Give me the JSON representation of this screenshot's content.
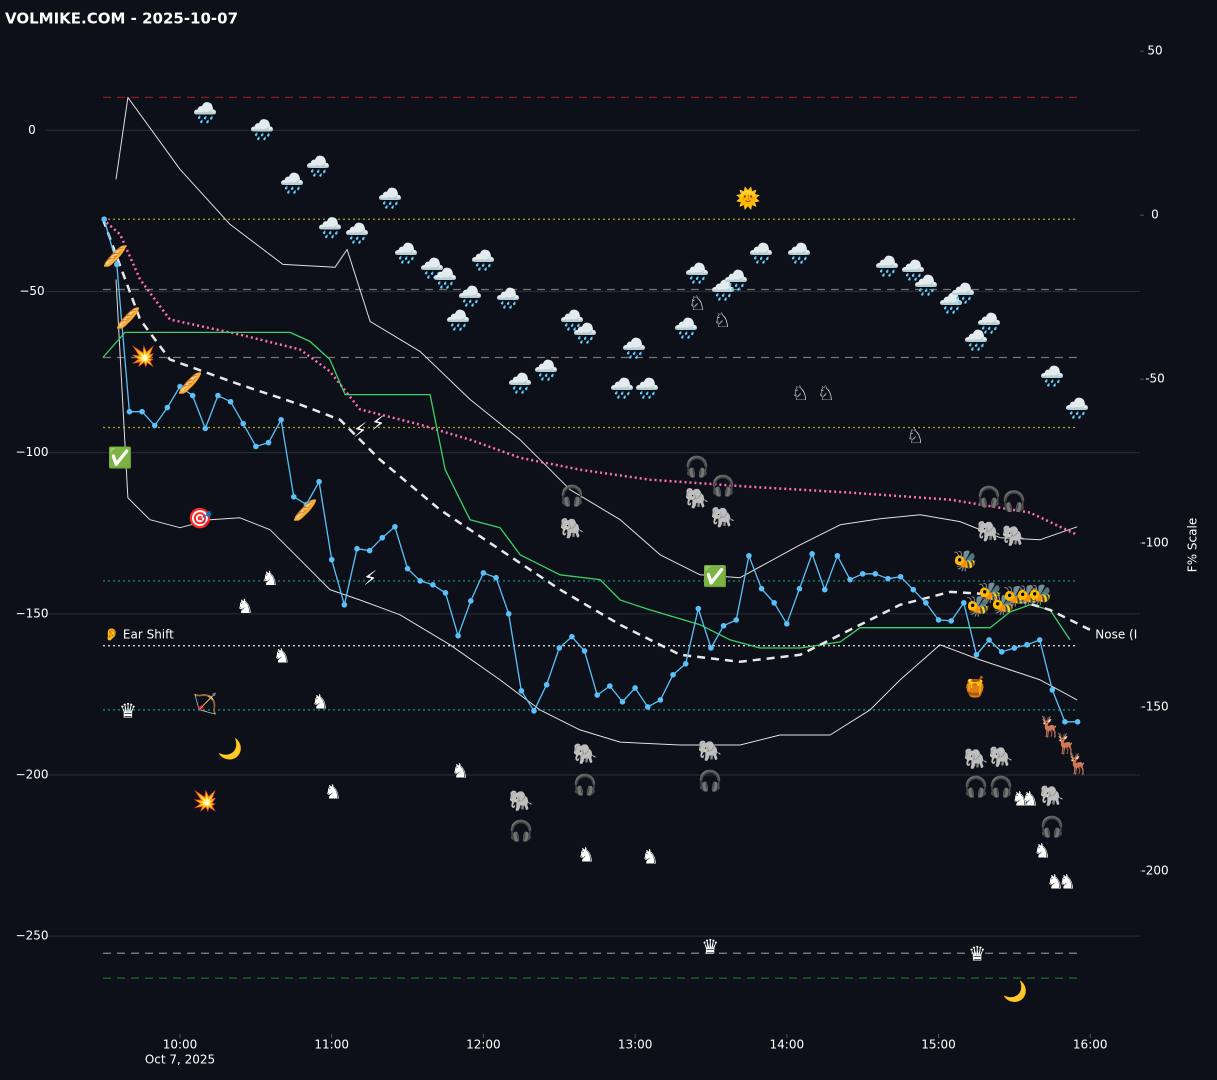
{
  "chart_data": {
    "type": "line",
    "title": "VOLMIKE.COM  - 2025-10-07",
    "y2_label": "F% Scale",
    "x_sublabel": "Oct 7, 2025",
    "annotations": [
      {
        "text": "👂 Ear Shift",
        "x": 570,
        "y": -156.5,
        "color": "#222222"
      },
      {
        "text": "Nose (I",
        "x": 962,
        "y": -156.5,
        "color": "#ffffff"
      }
    ],
    "xlim": [
      540,
      980
    ],
    "xticks": [
      {
        "value": 600,
        "label": "10:00"
      },
      {
        "value": 660,
        "label": "11:00"
      },
      {
        "value": 720,
        "label": "12:00"
      },
      {
        "value": 780,
        "label": "13:00"
      },
      {
        "value": 840,
        "label": "14:00"
      },
      {
        "value": 900,
        "label": "15:00"
      },
      {
        "value": 960,
        "label": "16:00"
      }
    ],
    "ylim": [
      -276,
      28
    ],
    "yticks": [
      0,
      {
        "value": -50,
        "label": "−50"
      },
      {
        "value": -100,
        "label": "−100"
      },
      {
        "value": -150,
        "label": "−150"
      },
      {
        "value": -200,
        "label": "−200"
      },
      {
        "value": -250,
        "label": "−250"
      }
    ],
    "y2lim": [
      -245.4,
      53.4
    ],
    "y2ticks": [
      50,
      0,
      -50,
      -100,
      -150,
      -200
    ],
    "grid": true,
    "hlines": [
      {
        "value": 10.2,
        "color": "#8b1a1a",
        "style": "dashed"
      },
      {
        "value": -27.6,
        "color": "#b8a020",
        "style": "dotted"
      },
      {
        "value": -49.4,
        "color": "#777777",
        "style": "dashed"
      },
      {
        "value": -70.5,
        "color": "#777777",
        "style": "dashed"
      },
      {
        "value": -92.2,
        "color": "#b8a020",
        "style": "dotted"
      },
      {
        "value": -139.8,
        "color": "#1f9c8c",
        "style": "dotted"
      },
      {
        "value": -159.9,
        "color": "#e8e8e8",
        "style": "dotted"
      },
      {
        "value": -179.8,
        "color": "#1f9c8c",
        "style": "dotted"
      },
      {
        "value": -255.3,
        "color": "#888888",
        "style": "dashed"
      },
      {
        "value": -263,
        "color": "#1b6e2a",
        "style": "dashed"
      }
    ],
    "series": [
      {
        "color": "#e0e0e0",
        "width": 1,
        "style": "solid",
        "x": [
          574.7,
          579.4,
          600,
          619.8,
          640.7,
          661.3,
          666.1,
          675.2,
          694.9,
          714.7,
          734.5,
          754.3,
          774.1,
          789.9,
          805.7,
          821.5,
          845.3,
          861.1,
          876.9,
          892.7,
          908.5,
          924.4,
          940.2,
          954.8
        ],
        "values": [
          -15.2,
          10.2,
          -12.1,
          -29.2,
          -41.6,
          -42.5,
          -37,
          -59.3,
          -68.6,
          -83.5,
          -96,
          -111.5,
          -120.8,
          -131.7,
          -137.9,
          -138.8,
          -128.6,
          -122.4,
          -120.5,
          -119.3,
          -121.4,
          -126.4,
          -127,
          -123
        ]
      },
      {
        "color": "#e0e0e0",
        "width": 1,
        "style": "solid",
        "x": [
          574.7,
          579.4,
          588.1,
          600,
          611.9,
          623.7,
          635.6,
          647.5,
          659.3,
          671.2,
          687,
          706.8,
          726.6,
          742.4,
          758.2,
          774.1,
          797.8,
          821.5,
          837.3,
          857.1,
          872.9,
          884.8,
          900.6,
          916.5,
          940.2,
          954.8
        ],
        "values": [
          -46.3,
          -114,
          -120.8,
          -123.3,
          -120.8,
          -120.2,
          -123.9,
          -133.2,
          -142.5,
          -145.7,
          -150.3,
          -159.6,
          -170.5,
          -179.8,
          -186,
          -189.8,
          -190.7,
          -190.7,
          -187.6,
          -187.6,
          -179.8,
          -170.5,
          -159.6,
          -164.3,
          -170.5,
          -176.7
        ]
      },
      {
        "color": "#ff6eb4",
        "width": 2.5,
        "style": "dotted",
        "x": [
          569.5,
          576.3,
          584.2,
          596,
          623.7,
          647.5,
          659.3,
          671.2,
          694.9,
          714.7,
          734.5,
          758.2,
          785.9,
          825.5,
          865.1,
          904.6,
          936.2,
          954.8
        ],
        "values": [
          -27.6,
          -32.3,
          -46.3,
          -58.7,
          -63.4,
          -68,
          -74.8,
          -86.6,
          -91.3,
          -96,
          -101.6,
          -105.3,
          -108.4,
          -110.6,
          -112.4,
          -114.6,
          -118.6,
          -125.5
        ]
      },
      {
        "color": "#3ecf6a",
        "width": 1.3,
        "style": "solid",
        "x": [
          569.5,
          578.2,
          643.5,
          651.4,
          659.3,
          665.3,
          698.9,
          704.9,
          714.7,
          726.6,
          734.5,
          750.3,
          766.1,
          774.1,
          785.9,
          805.7,
          817.6,
          829.4,
          845.3,
          861.1,
          869,
          920.4,
          928.3,
          936.2,
          944.1,
          952
        ],
        "values": [
          -70.5,
          -62.7,
          -62.7,
          -65.5,
          -71.1,
          -82,
          -82,
          -105.3,
          -120.8,
          -123.3,
          -131.7,
          -137.9,
          -139.4,
          -145.7,
          -148.8,
          -153.4,
          -158.1,
          -160.6,
          -160.6,
          -158.7,
          -154.3,
          -154.3,
          -149.4,
          -147.2,
          -148.8,
          -158.1
        ]
      },
      {
        "color": "#e8e8e8",
        "width": 2.5,
        "style": "dashed",
        "x": [
          569.5,
          584.2,
          596,
          623.7,
          647.5,
          663.3,
          679.1,
          702.8,
          726.6,
          750.3,
          774.1,
          797.8,
          821.5,
          845.3,
          869,
          884.8,
          904.6,
          924.4,
          944.1,
          960
        ],
        "values": [
          -27.6,
          -58.7,
          -71.1,
          -78.9,
          -85.1,
          -89.8,
          -102.2,
          -117.7,
          -130.1,
          -142.5,
          -153.4,
          -162.7,
          -164.9,
          -162.7,
          -153.4,
          -147.2,
          -143.2,
          -144.1,
          -148.8,
          -155
        ]
      },
      {
        "color": "#5bc0f8",
        "width": 1.3,
        "style": "solid",
        "markers": true,
        "x": [
          570,
          575,
          580,
          585,
          590,
          595,
          600,
          605,
          610,
          615,
          620,
          625,
          630,
          635,
          640,
          645,
          650,
          655,
          660,
          665,
          670,
          675,
          680,
          685,
          690,
          695,
          700,
          705,
          710,
          715,
          720,
          725,
          730,
          735,
          740,
          745,
          750,
          755,
          760,
          765,
          770,
          775,
          780,
          785,
          790,
          795,
          800,
          805,
          810,
          815,
          820,
          825,
          830,
          835,
          840,
          845,
          850,
          855,
          860,
          865,
          870,
          875,
          880,
          885,
          890,
          895,
          900,
          905,
          910,
          915,
          920,
          925,
          930,
          935,
          940,
          945,
          950,
          955
        ],
        "values": [
          -27.6,
          -41.6,
          -87.3,
          -87.3,
          -91.6,
          -86,
          -79.5,
          -82.3,
          -92.5,
          -82.3,
          -84.2,
          -91,
          -98.1,
          -96.9,
          -89.8,
          -113.7,
          -116.1,
          -109,
          -133.2,
          -147.2,
          -129.8,
          -130.4,
          -126.4,
          -123,
          -136,
          -139.8,
          -141,
          -143.5,
          -156.8,
          -146,
          -137.3,
          -138.8,
          -150,
          -173.9,
          -180.1,
          -172,
          -160.6,
          -157.1,
          -161.5,
          -175.2,
          -172.4,
          -177.3,
          -173,
          -178.9,
          -176.7,
          -168.9,
          -165.5,
          -148.4,
          -160.6,
          -153.7,
          -151.9,
          -132,
          -142.2,
          -146.6,
          -153.1,
          -142.2,
          -131.4,
          -142.5,
          -132,
          -139.4,
          -137.6,
          -137.6,
          -139.1,
          -138.5,
          -142.5,
          -146.6,
          -151.9,
          -152.2,
          -146.6,
          -162.7,
          -158.1,
          -161.8,
          -160.6,
          -159.6,
          -158.1,
          -173.6,
          -183.5,
          -183.5
        ]
      }
    ],
    "markers": [
      {
        "symbol": "🌧️",
        "color": "#ffffff",
        "points": [
          [
            609.9,
            5
          ],
          [
            632.4,
            -0.3
          ],
          [
            644.3,
            -16.8
          ],
          [
            654.6,
            -11.5
          ],
          [
            659.3,
            -30.7
          ],
          [
            670,
            -32.3
          ],
          [
            683.1,
            -21.4
          ],
          [
            689.4,
            -38.5
          ],
          [
            699.7,
            -43.2
          ],
          [
            704.8,
            -46.3
          ],
          [
            710,
            -59.3
          ],
          [
            714.7,
            -51.9
          ],
          [
            719.9,
            -40.7
          ],
          [
            729.7,
            -52.5
          ],
          [
            734.5,
            -78.9
          ],
          [
            744.8,
            -74.8
          ],
          [
            755.1,
            -59.3
          ],
          [
            760.2,
            -63.4
          ],
          [
            774.8,
            -80.4
          ],
          [
            784.7,
            -80.4
          ],
          [
            779.6,
            -68
          ],
          [
            800.2,
            -61.8
          ],
          [
            804.5,
            -44.7
          ],
          [
            814.8,
            -50
          ],
          [
            819.9,
            -46.9
          ],
          [
            829.8,
            -38.5
          ],
          [
            844.9,
            -38.5
          ],
          [
            879.7,
            -42.5
          ],
          [
            890,
            -43.8
          ],
          [
            895.1,
            -48.4
          ],
          [
            905,
            -54
          ],
          [
            909.7,
            -50.9
          ],
          [
            914.9,
            -65.5
          ],
          [
            920,
            -60.2
          ],
          [
            944.9,
            -76.7
          ],
          [
            954.8,
            -86.6
          ]
        ]
      },
      {
        "symbol": "♞",
        "color": "#ff1a1a",
        "points": [
          [
            625.7,
            -148.1
          ],
          [
            635.6,
            -139.4
          ],
          [
            640.3,
            -163.4
          ],
          [
            655.4,
            -177.6
          ],
          [
            660.5,
            -205.6
          ],
          [
            710.8,
            -199.1
          ],
          [
            760.6,
            -225.2
          ],
          [
            785.9,
            -225.8
          ],
          [
            932.3,
            -207.8
          ],
          [
            936.2,
            -207.8
          ],
          [
            941,
            -223.9
          ],
          [
            946.1,
            -233.5
          ],
          [
            950.9,
            -233.5
          ]
        ]
      },
      {
        "symbol": "♛",
        "color": "#ff1a1a",
        "points": [
          [
            579.4,
            -180.4
          ],
          [
            809.7,
            -253.7
          ],
          [
            915.3,
            -255.9
          ]
        ]
      },
      {
        "symbol": "♘",
        "color": "#1db844",
        "points": [
          [
            845.3,
            -82
          ],
          [
            855.5,
            -82
          ],
          [
            890.8,
            -95.3
          ],
          [
            804.5,
            -54
          ],
          [
            814.4,
            -59.3
          ]
        ]
      },
      {
        "symbol": "🎧",
        "color": "#ffffff",
        "points": [
          [
            755.1,
            -113.7
          ],
          [
            804.5,
            -104.7
          ],
          [
            814.8,
            -110.6
          ],
          [
            760.2,
            -203.4
          ],
          [
            809.7,
            -202.2
          ],
          [
            734.9,
            -217.7
          ],
          [
            920,
            -114
          ],
          [
            929.9,
            -115.5
          ],
          [
            914.9,
            -204
          ],
          [
            924.8,
            -204
          ],
          [
            944.9,
            -216.5
          ]
        ]
      },
      {
        "symbol": "🐘",
        "color": "#ffffff",
        "points": [
          [
            755.1,
            -123.9
          ],
          [
            804.5,
            -114.6
          ],
          [
            814.8,
            -120.5
          ],
          [
            760.2,
            -193.8
          ],
          [
            809.7,
            -192.9
          ],
          [
            734.9,
            -208.4
          ],
          [
            920,
            -124.8
          ],
          [
            929.9,
            -126.1
          ],
          [
            914.9,
            -195.3
          ],
          [
            924.8,
            -194.7
          ],
          [
            944.9,
            -206.8
          ]
        ]
      },
      {
        "symbol": "🐝",
        "color": "#ffffff",
        "points": [
          [
            910.5,
            -133.9
          ],
          [
            915.6,
            -148.1
          ],
          [
            920.4,
            -143.8
          ],
          [
            925.6,
            -147.5
          ],
          [
            930.3,
            -145
          ],
          [
            935.4,
            -144.7
          ],
          [
            940.2,
            -144.4
          ]
        ]
      },
      {
        "symbol": "🌙",
        "color": "#ffd23f",
        "points": [
          [
            619.8,
            -192.2
          ],
          [
            930.3,
            -267.4
          ]
        ]
      },
      {
        "symbol": "✅",
        "color": "#22c55e",
        "points": [
          [
            576.3,
            -101.9
          ],
          [
            811.6,
            -138.8
          ]
        ]
      },
      {
        "symbol": "⚡",
        "color": "#ffd23f",
        "points": [
          [
            671.2,
            -93.5
          ],
          [
            678.3,
            -91.3
          ],
          [
            675.2,
            -139.4
          ]
        ]
      },
      {
        "symbol": "🌞",
        "color": "#ffd23f",
        "points": [
          [
            824.7,
            -21.4
          ]
        ]
      },
      {
        "symbol": "🦌",
        "color": "#a0522d",
        "points": [
          [
            944.1,
            -185.4
          ],
          [
            950.5,
            -190.7
          ],
          [
            955.2,
            -196.9
          ]
        ]
      },
      {
        "symbol": "💥",
        "color": "#ff6a00",
        "points": [
          [
            585.4,
            -70.5
          ],
          [
            609.9,
            -208.4
          ]
        ]
      },
      {
        "symbol": "🎯",
        "color": "#ff1a1a",
        "points": [
          [
            607.9,
            -120.8
          ]
        ]
      },
      {
        "symbol": "🏹",
        "color": "#aaaaaa",
        "points": [
          [
            609.9,
            -178.3
          ]
        ]
      },
      {
        "symbol": "🍯",
        "color": "#ffb000",
        "points": [
          [
            914.5,
            -173
          ]
        ]
      },
      {
        "symbol": "🥖",
        "color": "#d2a060",
        "points": [
          [
            574.3,
            -39.4
          ],
          [
            579.4,
            -58.7
          ],
          [
            604,
            -78.9
          ],
          [
            649.4,
            -118.3
          ]
        ]
      }
    ]
  }
}
